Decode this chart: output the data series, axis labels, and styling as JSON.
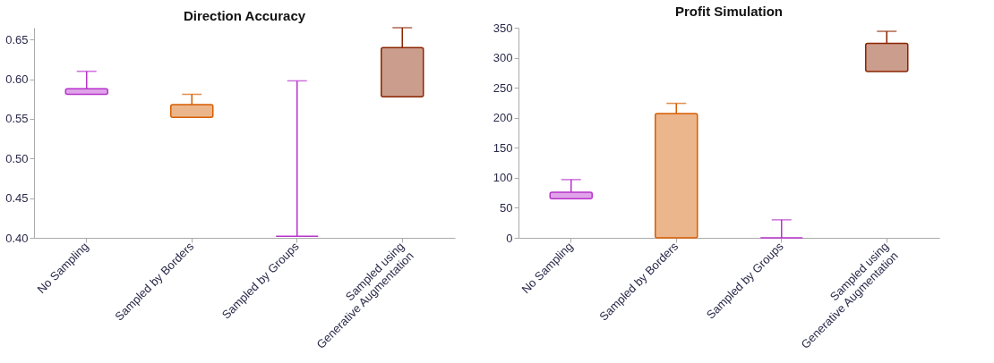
{
  "chart_data": [
    {
      "type": "bar",
      "title": "Direction Accuracy",
      "categories": [
        "No Sampling",
        "Sampled by Borders",
        "Sampled by Groups",
        "Sampled using\nGenerative Augmentation"
      ],
      "base": [
        0.581,
        0.552,
        0.402,
        0.578
      ],
      "values": [
        0.007,
        0.016,
        0.0,
        0.062
      ],
      "errors": [
        [
          0.588,
          0.61
        ],
        [
          0.568,
          0.581
        ],
        [
          0.402,
          0.598
        ],
        [
          0.64,
          0.665
        ]
      ],
      "colors": [
        "#b833cc",
        "#d55e00",
        "#b833cc",
        "#8b2500"
      ],
      "ylim": [
        0.4,
        0.665
      ],
      "yticks": [
        {
          "value": 0.4,
          "label": "0.40"
        },
        {
          "value": 0.45,
          "label": "0.45"
        },
        {
          "value": 0.5,
          "label": "0.50"
        },
        {
          "value": 0.55,
          "label": "0.55"
        },
        {
          "value": 0.6,
          "label": "0.60"
        },
        {
          "value": 0.65,
          "label": "0.65"
        }
      ],
      "grid": false
    },
    {
      "type": "bar",
      "title": "Profit Simulation",
      "categories": [
        "No Sampling",
        "Sampled by Borders",
        "Sampled by Groups",
        "Sampled using\nGenerative Augmentation"
      ],
      "base": [
        65,
        0,
        0,
        277
      ],
      "values": [
        11,
        207,
        0,
        47
      ],
      "errors": [
        [
          76,
          97
        ],
        [
          207,
          224
        ],
        [
          0,
          30
        ],
        [
          324,
          344
        ]
      ],
      "colors": [
        "#b833cc",
        "#d55e00",
        "#b833cc",
        "#8b2500"
      ],
      "ylim": [
        0,
        350
      ],
      "yticks": [
        0,
        50,
        100,
        150,
        200,
        250,
        300,
        350
      ],
      "grid": false
    }
  ]
}
